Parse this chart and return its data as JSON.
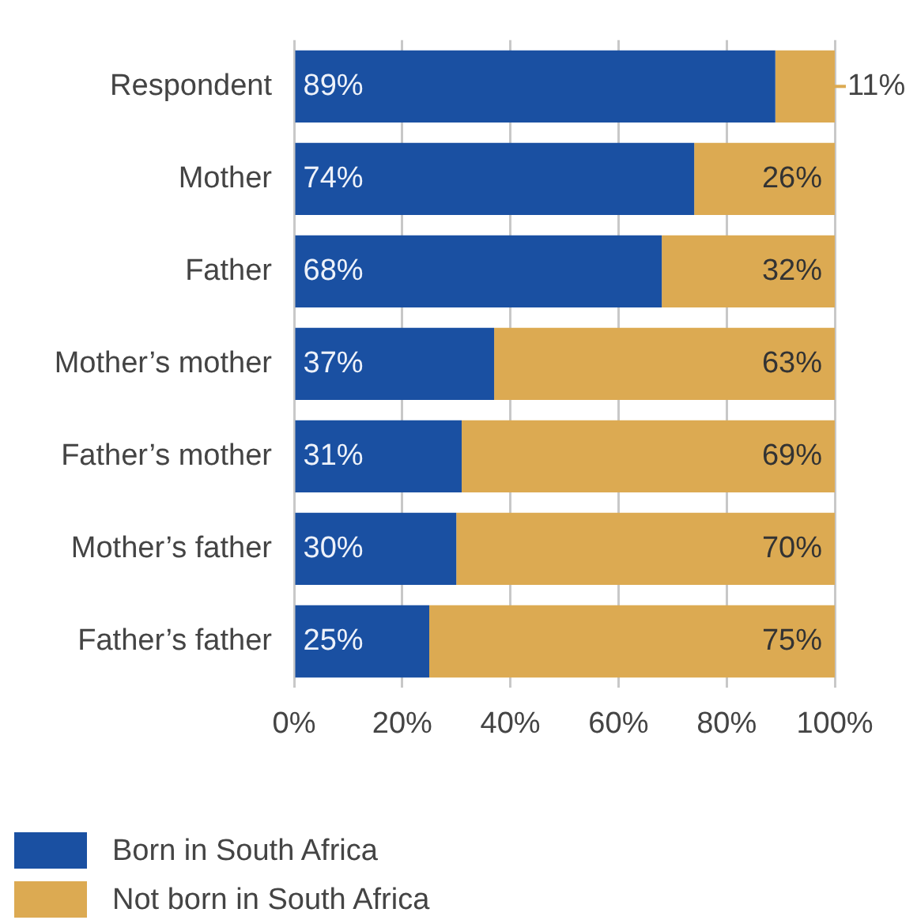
{
  "chart_data": {
    "type": "bar",
    "orientation": "horizontal",
    "stacked": true,
    "categories": [
      "Respondent",
      "Mother",
      "Father",
      "Mother’s mother",
      "Father’s mother",
      "Mother’s father",
      "Father’s father"
    ],
    "series": [
      {
        "name": "Born in South Africa",
        "color": "#1a50a2",
        "values": [
          89,
          74,
          68,
          37,
          31,
          30,
          25
        ],
        "value_labels": [
          "89%",
          "74%",
          "68%",
          "37%",
          "31%",
          "30%",
          "25%"
        ]
      },
      {
        "name": "Not born in South Africa",
        "color": "#dcaa52",
        "values": [
          11,
          26,
          32,
          63,
          69,
          70,
          75
        ],
        "value_labels": [
          "11%",
          "26%",
          "32%",
          "63%",
          "69%",
          "70%",
          "75%"
        ]
      }
    ],
    "xlim": [
      0,
      100
    ],
    "xticks": [
      {
        "value": 0,
        "label": "0%"
      },
      {
        "value": 20,
        "label": "20%"
      },
      {
        "value": 40,
        "label": "40%"
      },
      {
        "value": 60,
        "label": "60%"
      },
      {
        "value": 80,
        "label": "80%"
      },
      {
        "value": 100,
        "label": "100%"
      }
    ],
    "grid": "x",
    "legend": "bottom left"
  }
}
